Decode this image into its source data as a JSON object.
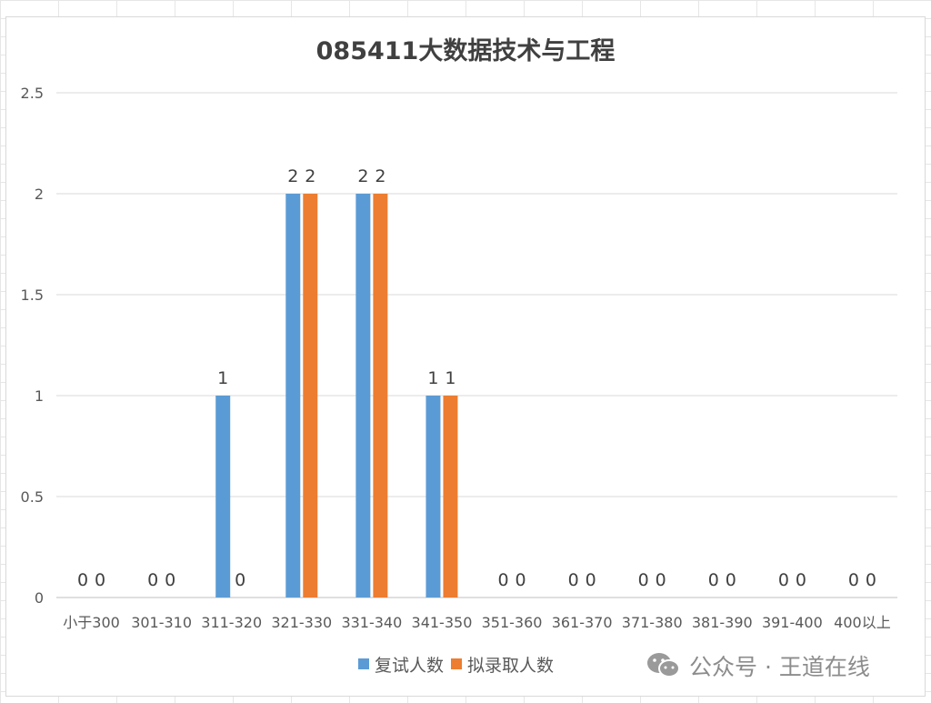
{
  "chart_data": {
    "type": "bar",
    "title": "085411大数据技术与工程",
    "xlabel": "",
    "ylabel": "",
    "ylim": [
      0,
      2.5
    ],
    "yticks": [
      "0",
      "0.5",
      "1",
      "1.5",
      "2",
      "2.5"
    ],
    "categories": [
      "小于300",
      "301-310",
      "311-320",
      "321-330",
      "331-340",
      "341-350",
      "351-360",
      "361-370",
      "371-380",
      "381-390",
      "391-400",
      "400以上"
    ],
    "series": [
      {
        "name": "复试人数",
        "color": "#5b9bd5",
        "values": [
          0,
          0,
          1,
          2,
          2,
          1,
          0,
          0,
          0,
          0,
          0,
          0
        ]
      },
      {
        "name": "拟录取人数",
        "color": "#ed7d31",
        "values": [
          0,
          0,
          0,
          2,
          2,
          1,
          0,
          0,
          0,
          0,
          0,
          0
        ]
      }
    ],
    "grid": true,
    "legend_position": "bottom",
    "data_labels": true
  },
  "watermark": {
    "icon": "wechat-icon",
    "text": "公众号 · 王道在线"
  }
}
